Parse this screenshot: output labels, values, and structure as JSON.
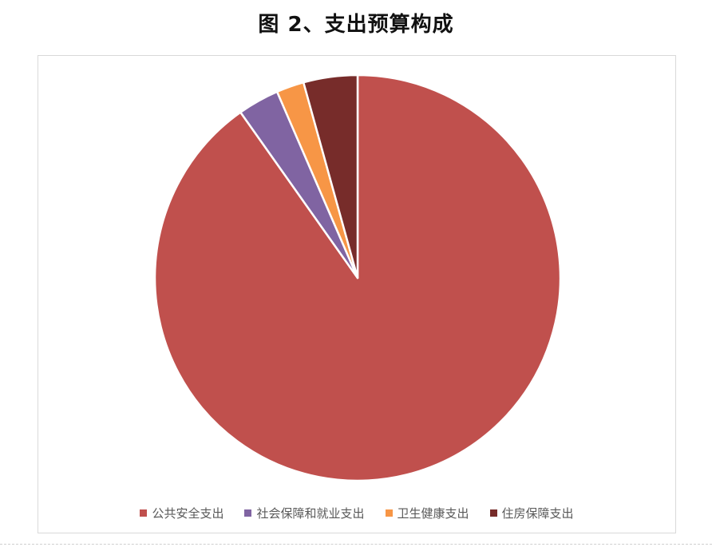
{
  "title": "图 2、支出预算构成",
  "chart_data": {
    "type": "pie",
    "title": "图 2、支出预算构成",
    "categories": [
      "公共安全支出",
      "社会保障和就业支出",
      "卫生健康支出",
      "住房保障支出"
    ],
    "values": [
      90.2,
      3.3,
      2.2,
      4.3
    ],
    "colors": [
      "#C0504D",
      "#8064A2",
      "#F79646",
      "#772C2A"
    ],
    "legend_position": "bottom",
    "start_angle_deg": 0,
    "direction": "clockwise",
    "grid": false
  }
}
